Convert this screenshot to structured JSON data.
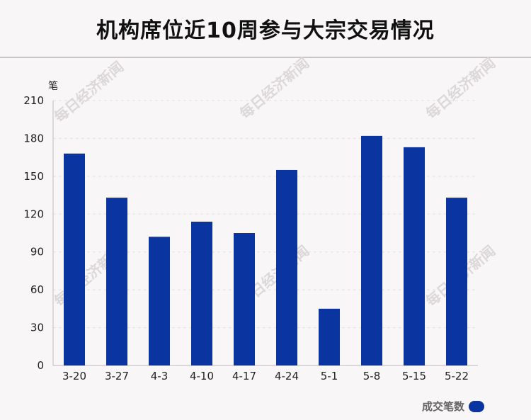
{
  "chart_data": {
    "type": "bar",
    "title": "机构席位近10周参与大宗交易情况",
    "ylabel": "笔",
    "ylim": [
      0,
      210
    ],
    "yticks": [
      0,
      30,
      60,
      90,
      120,
      150,
      180,
      210
    ],
    "categories": [
      "3-20",
      "3-27",
      "4-3",
      "4-10",
      "4-17",
      "4-24",
      "5-1",
      "5-8",
      "5-15",
      "5-22"
    ],
    "series": [
      {
        "name": "成交笔数",
        "values": [
          168,
          133,
          102,
          114,
          105,
          155,
          45,
          182,
          173,
          133
        ]
      }
    ],
    "bar_color": "#0a34a0",
    "grid": true,
    "legend_position": "bottom-right"
  },
  "watermark": "每日经济新闻"
}
